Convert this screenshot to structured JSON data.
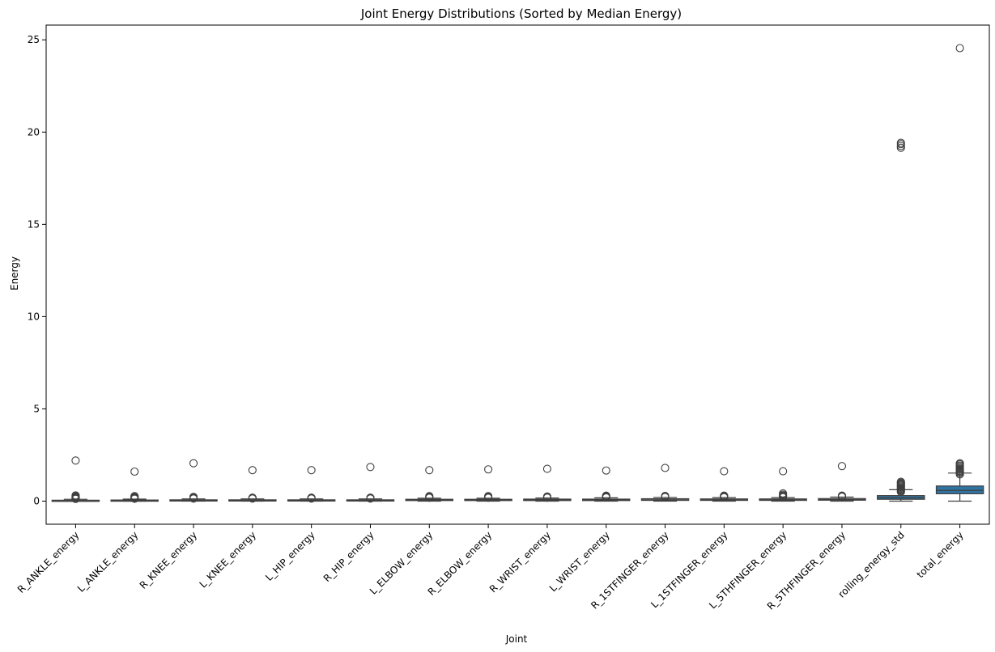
{
  "chart_data": {
    "type": "box",
    "title": "Joint Energy Distributions (Sorted by Median Energy)",
    "xlabel": "Joint",
    "ylabel": "Energy",
    "ylim": [
      -1.25,
      25.8
    ],
    "yticks": [
      0,
      5,
      10,
      15,
      20,
      25
    ],
    "grid": false,
    "categories": [
      "R_ANKLE_energy",
      "L_ANKLE_energy",
      "R_KNEE_energy",
      "L_KNEE_energy",
      "L_HIP_energy",
      "R_HIP_energy",
      "L_ELBOW_energy",
      "R_ELBOW_energy",
      "R_WRIST_energy",
      "L_WRIST_energy",
      "R_1STFINGER_energy",
      "L_1STFINGER_energy",
      "L_5THFINGER_energy",
      "R_5THFINGER_energy",
      "rolling_energy_std",
      "total_energy"
    ],
    "boxes": [
      {
        "min": 0.0,
        "q1": 0.01,
        "median": 0.03,
        "q3": 0.05,
        "max": 0.1,
        "outliers": [
          0.12,
          0.15,
          0.18,
          0.21,
          0.24,
          0.28,
          0.31,
          2.2
        ]
      },
      {
        "min": 0.0,
        "q1": 0.01,
        "median": 0.03,
        "q3": 0.06,
        "max": 0.11,
        "outliers": [
          0.13,
          0.16,
          0.2,
          0.23,
          0.27,
          1.6
        ]
      },
      {
        "min": 0.0,
        "q1": 0.02,
        "median": 0.04,
        "q3": 0.07,
        "max": 0.12,
        "outliers": [
          0.14,
          0.17,
          0.2,
          0.23,
          2.05
        ]
      },
      {
        "min": 0.0,
        "q1": 0.02,
        "median": 0.04,
        "q3": 0.07,
        "max": 0.12,
        "outliers": [
          0.14,
          0.16,
          0.19,
          1.68
        ]
      },
      {
        "min": 0.0,
        "q1": 0.02,
        "median": 0.04,
        "q3": 0.07,
        "max": 0.12,
        "outliers": [
          0.14,
          0.16,
          0.19,
          1.68
        ]
      },
      {
        "min": 0.0,
        "q1": 0.02,
        "median": 0.05,
        "q3": 0.07,
        "max": 0.12,
        "outliers": [
          0.14,
          0.16,
          0.19,
          1.85
        ]
      },
      {
        "min": 0.0,
        "q1": 0.03,
        "median": 0.06,
        "q3": 0.1,
        "max": 0.16,
        "outliers": [
          0.18,
          0.21,
          0.24,
          0.27,
          1.68
        ]
      },
      {
        "min": 0.0,
        "q1": 0.03,
        "median": 0.06,
        "q3": 0.1,
        "max": 0.16,
        "outliers": [
          0.18,
          0.21,
          0.24,
          0.27,
          1.72
        ]
      },
      {
        "min": 0.0,
        "q1": 0.03,
        "median": 0.07,
        "q3": 0.11,
        "max": 0.17,
        "outliers": [
          0.19,
          0.22,
          0.25,
          1.75
        ]
      },
      {
        "min": 0.0,
        "q1": 0.03,
        "median": 0.07,
        "q3": 0.11,
        "max": 0.18,
        "outliers": [
          0.2,
          0.23,
          0.26,
          0.3,
          1.66
        ]
      },
      {
        "min": 0.0,
        "q1": 0.04,
        "median": 0.08,
        "q3": 0.13,
        "max": 0.2,
        "outliers": [
          0.22,
          0.25,
          0.28,
          1.8
        ]
      },
      {
        "min": 0.0,
        "q1": 0.04,
        "median": 0.08,
        "q3": 0.12,
        "max": 0.19,
        "outliers": [
          0.21,
          0.24,
          0.27,
          0.3,
          1.62
        ]
      },
      {
        "min": 0.0,
        "q1": 0.04,
        "median": 0.08,
        "q3": 0.12,
        "max": 0.19,
        "outliers": [
          0.21,
          0.25,
          0.3,
          0.35,
          0.42,
          1.62
        ]
      },
      {
        "min": 0.0,
        "q1": 0.05,
        "median": 0.09,
        "q3": 0.14,
        "max": 0.22,
        "outliers": [
          0.24,
          0.27,
          0.3,
          1.9
        ]
      },
      {
        "min": 0.0,
        "q1": 0.1,
        "median": 0.18,
        "q3": 0.3,
        "max": 0.62,
        "outliers": [
          0.5,
          0.55,
          0.6,
          0.65,
          0.7,
          0.75,
          0.8,
          0.85,
          0.9,
          0.95,
          1.0,
          1.05,
          19.15,
          19.25,
          19.35,
          19.42
        ]
      },
      {
        "min": 0.0,
        "q1": 0.4,
        "median": 0.58,
        "q3": 0.82,
        "max": 1.52,
        "outliers": [
          1.45,
          1.52,
          1.58,
          1.63,
          1.7,
          1.75,
          1.8,
          1.87,
          1.93,
          2.0,
          2.05,
          24.55
        ]
      }
    ],
    "colors": {
      "box_fill": "#ffffff",
      "box_fill_highlight": "#3274a1",
      "edge": "#3f3f3f",
      "axis": "#000000"
    }
  }
}
